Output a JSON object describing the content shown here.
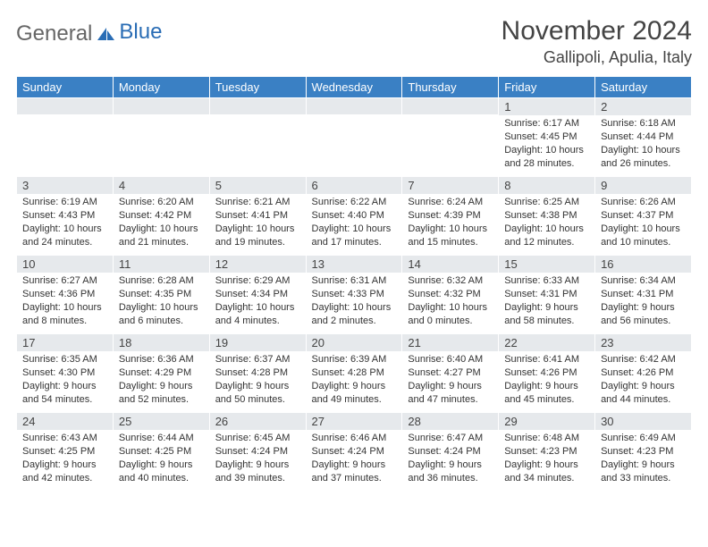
{
  "logo": {
    "part1": "General",
    "part2": "Blue"
  },
  "title": "November 2024",
  "location": "Gallipoli, Apulia, Italy",
  "columns": [
    "Sunday",
    "Monday",
    "Tuesday",
    "Wednesday",
    "Thursday",
    "Friday",
    "Saturday"
  ],
  "colors": {
    "header_bg": "#3a80c4",
    "header_text": "#ffffff",
    "band_bg": "#e6e9ec",
    "text": "#333333",
    "title_text": "#444444",
    "logo_gray": "#666666",
    "logo_blue": "#2a6db5"
  },
  "weeks": [
    [
      {
        "day": "",
        "sunrise": "",
        "sunset": "",
        "daylight": ""
      },
      {
        "day": "",
        "sunrise": "",
        "sunset": "",
        "daylight": ""
      },
      {
        "day": "",
        "sunrise": "",
        "sunset": "",
        "daylight": ""
      },
      {
        "day": "",
        "sunrise": "",
        "sunset": "",
        "daylight": ""
      },
      {
        "day": "",
        "sunrise": "",
        "sunset": "",
        "daylight": ""
      },
      {
        "day": "1",
        "sunrise": "Sunrise: 6:17 AM",
        "sunset": "Sunset: 4:45 PM",
        "daylight": "Daylight: 10 hours and 28 minutes."
      },
      {
        "day": "2",
        "sunrise": "Sunrise: 6:18 AM",
        "sunset": "Sunset: 4:44 PM",
        "daylight": "Daylight: 10 hours and 26 minutes."
      }
    ],
    [
      {
        "day": "3",
        "sunrise": "Sunrise: 6:19 AM",
        "sunset": "Sunset: 4:43 PM",
        "daylight": "Daylight: 10 hours and 24 minutes."
      },
      {
        "day": "4",
        "sunrise": "Sunrise: 6:20 AM",
        "sunset": "Sunset: 4:42 PM",
        "daylight": "Daylight: 10 hours and 21 minutes."
      },
      {
        "day": "5",
        "sunrise": "Sunrise: 6:21 AM",
        "sunset": "Sunset: 4:41 PM",
        "daylight": "Daylight: 10 hours and 19 minutes."
      },
      {
        "day": "6",
        "sunrise": "Sunrise: 6:22 AM",
        "sunset": "Sunset: 4:40 PM",
        "daylight": "Daylight: 10 hours and 17 minutes."
      },
      {
        "day": "7",
        "sunrise": "Sunrise: 6:24 AM",
        "sunset": "Sunset: 4:39 PM",
        "daylight": "Daylight: 10 hours and 15 minutes."
      },
      {
        "day": "8",
        "sunrise": "Sunrise: 6:25 AM",
        "sunset": "Sunset: 4:38 PM",
        "daylight": "Daylight: 10 hours and 12 minutes."
      },
      {
        "day": "9",
        "sunrise": "Sunrise: 6:26 AM",
        "sunset": "Sunset: 4:37 PM",
        "daylight": "Daylight: 10 hours and 10 minutes."
      }
    ],
    [
      {
        "day": "10",
        "sunrise": "Sunrise: 6:27 AM",
        "sunset": "Sunset: 4:36 PM",
        "daylight": "Daylight: 10 hours and 8 minutes."
      },
      {
        "day": "11",
        "sunrise": "Sunrise: 6:28 AM",
        "sunset": "Sunset: 4:35 PM",
        "daylight": "Daylight: 10 hours and 6 minutes."
      },
      {
        "day": "12",
        "sunrise": "Sunrise: 6:29 AM",
        "sunset": "Sunset: 4:34 PM",
        "daylight": "Daylight: 10 hours and 4 minutes."
      },
      {
        "day": "13",
        "sunrise": "Sunrise: 6:31 AM",
        "sunset": "Sunset: 4:33 PM",
        "daylight": "Daylight: 10 hours and 2 minutes."
      },
      {
        "day": "14",
        "sunrise": "Sunrise: 6:32 AM",
        "sunset": "Sunset: 4:32 PM",
        "daylight": "Daylight: 10 hours and 0 minutes."
      },
      {
        "day": "15",
        "sunrise": "Sunrise: 6:33 AM",
        "sunset": "Sunset: 4:31 PM",
        "daylight": "Daylight: 9 hours and 58 minutes."
      },
      {
        "day": "16",
        "sunrise": "Sunrise: 6:34 AM",
        "sunset": "Sunset: 4:31 PM",
        "daylight": "Daylight: 9 hours and 56 minutes."
      }
    ],
    [
      {
        "day": "17",
        "sunrise": "Sunrise: 6:35 AM",
        "sunset": "Sunset: 4:30 PM",
        "daylight": "Daylight: 9 hours and 54 minutes."
      },
      {
        "day": "18",
        "sunrise": "Sunrise: 6:36 AM",
        "sunset": "Sunset: 4:29 PM",
        "daylight": "Daylight: 9 hours and 52 minutes."
      },
      {
        "day": "19",
        "sunrise": "Sunrise: 6:37 AM",
        "sunset": "Sunset: 4:28 PM",
        "daylight": "Daylight: 9 hours and 50 minutes."
      },
      {
        "day": "20",
        "sunrise": "Sunrise: 6:39 AM",
        "sunset": "Sunset: 4:28 PM",
        "daylight": "Daylight: 9 hours and 49 minutes."
      },
      {
        "day": "21",
        "sunrise": "Sunrise: 6:40 AM",
        "sunset": "Sunset: 4:27 PM",
        "daylight": "Daylight: 9 hours and 47 minutes."
      },
      {
        "day": "22",
        "sunrise": "Sunrise: 6:41 AM",
        "sunset": "Sunset: 4:26 PM",
        "daylight": "Daylight: 9 hours and 45 minutes."
      },
      {
        "day": "23",
        "sunrise": "Sunrise: 6:42 AM",
        "sunset": "Sunset: 4:26 PM",
        "daylight": "Daylight: 9 hours and 44 minutes."
      }
    ],
    [
      {
        "day": "24",
        "sunrise": "Sunrise: 6:43 AM",
        "sunset": "Sunset: 4:25 PM",
        "daylight": "Daylight: 9 hours and 42 minutes."
      },
      {
        "day": "25",
        "sunrise": "Sunrise: 6:44 AM",
        "sunset": "Sunset: 4:25 PM",
        "daylight": "Daylight: 9 hours and 40 minutes."
      },
      {
        "day": "26",
        "sunrise": "Sunrise: 6:45 AM",
        "sunset": "Sunset: 4:24 PM",
        "daylight": "Daylight: 9 hours and 39 minutes."
      },
      {
        "day": "27",
        "sunrise": "Sunrise: 6:46 AM",
        "sunset": "Sunset: 4:24 PM",
        "daylight": "Daylight: 9 hours and 37 minutes."
      },
      {
        "day": "28",
        "sunrise": "Sunrise: 6:47 AM",
        "sunset": "Sunset: 4:24 PM",
        "daylight": "Daylight: 9 hours and 36 minutes."
      },
      {
        "day": "29",
        "sunrise": "Sunrise: 6:48 AM",
        "sunset": "Sunset: 4:23 PM",
        "daylight": "Daylight: 9 hours and 34 minutes."
      },
      {
        "day": "30",
        "sunrise": "Sunrise: 6:49 AM",
        "sunset": "Sunset: 4:23 PM",
        "daylight": "Daylight: 9 hours and 33 minutes."
      }
    ]
  ]
}
